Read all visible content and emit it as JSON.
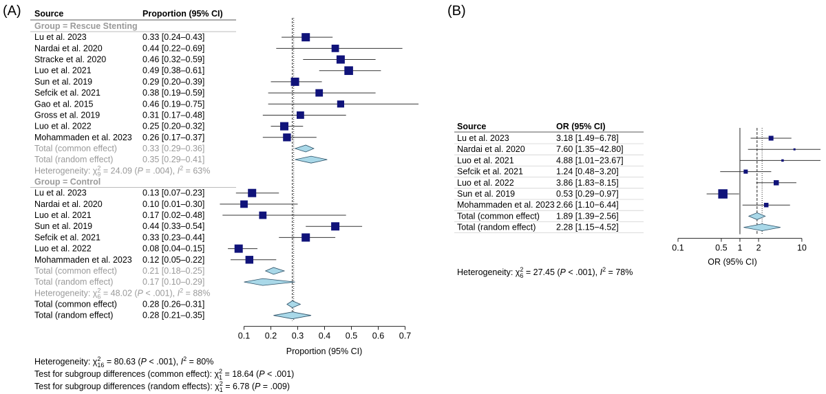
{
  "panel_a": {
    "label": "(A)",
    "header_source": "Source",
    "header_ci": "Proportion (95% CI)",
    "xlabel": "Proportion (95% CI)",
    "footer": {
      "line1": [
        "Heterogeneity: χ",
        "2",
        "16",
        " = 80.63 (",
        "P",
        " < .001), ",
        "I",
        "2",
        " = 80%"
      ],
      "line2": [
        "Test for subgroup differences (common effect): χ",
        "2",
        "1",
        " = 18.64 (",
        "P",
        " < .001)"
      ],
      "line3": [
        "Test for subgroup differences (random effects): χ",
        "2",
        "1",
        " = 6.78 (",
        "P",
        " = .009)"
      ]
    }
  },
  "panel_b": {
    "label": "(B)",
    "header_source": "Source",
    "header_ci": "OR (95% CI)",
    "xlabel": "OR (95% CI)",
    "heterogeneity": [
      "Heterogeneity: χ",
      "2",
      "6",
      " = 27.45 (",
      "P",
      " < .001), ",
      "I",
      "2",
      " = 78%"
    ]
  },
  "chart_data": [
    {
      "type": "forest",
      "xlim": [
        0.05,
        0.75
      ],
      "xticks": [
        0.1,
        0.2,
        0.3,
        0.4,
        0.5,
        0.6,
        0.7
      ],
      "common_line": 0.28,
      "rows": [
        {
          "kind": "group",
          "label": "Group = Rescue Stenting"
        },
        {
          "kind": "study",
          "label": "Lu et al. 2023",
          "ci_text": "0.33 [0.24–0.43]",
          "est": 0.33,
          "lo": 0.24,
          "hi": 0.43,
          "w": 1.0
        },
        {
          "kind": "study",
          "label": "Nardai et al. 2020",
          "ci_text": "0.44 [0.22–0.69]",
          "est": 0.44,
          "lo": 0.22,
          "hi": 0.69,
          "w": 0.9
        },
        {
          "kind": "study",
          "label": "Stracke et al. 2020",
          "ci_text": "0.46 [0.32–0.59]",
          "est": 0.46,
          "lo": 0.32,
          "hi": 0.59,
          "w": 1.0
        },
        {
          "kind": "study",
          "label": "Luo et al. 2021",
          "ci_text": "0.49 [0.38–0.61]",
          "est": 0.49,
          "lo": 0.38,
          "hi": 0.61,
          "w": 1.05
        },
        {
          "kind": "study",
          "label": "Sun et al. 2019",
          "ci_text": "0.29 [0.20–0.39]",
          "est": 0.29,
          "lo": 0.2,
          "hi": 0.39,
          "w": 1.0
        },
        {
          "kind": "study",
          "label": "Sefcik et al. 2021",
          "ci_text": "0.38 [0.19–0.59]",
          "est": 0.38,
          "lo": 0.19,
          "hi": 0.59,
          "w": 0.9
        },
        {
          "kind": "study",
          "label": "Gao et al. 2015",
          "ci_text": "0.46 [0.19–0.75]",
          "est": 0.46,
          "lo": 0.19,
          "hi": 0.75,
          "w": 0.85
        },
        {
          "kind": "study",
          "label": "Gross et al. 2019",
          "ci_text": "0.31 [0.17–0.48]",
          "est": 0.31,
          "lo": 0.17,
          "hi": 0.48,
          "w": 0.9
        },
        {
          "kind": "study",
          "label": "Luo et al. 2022",
          "ci_text": "0.25 [0.20–0.32]",
          "est": 0.25,
          "lo": 0.2,
          "hi": 0.32,
          "w": 1.0
        },
        {
          "kind": "study",
          "label": "Mohammaden et al. 2023",
          "ci_text": "0.26 [0.17–0.37]",
          "est": 0.26,
          "lo": 0.17,
          "hi": 0.37,
          "w": 0.95
        },
        {
          "kind": "sub_pooled",
          "label": "Total (common effect)",
          "ci_text": "0.33 [0.29–0.36]",
          "est": 0.33,
          "lo": 0.29,
          "hi": 0.36
        },
        {
          "kind": "sub_pooled",
          "label": "Total (random effect)",
          "ci_text": "0.35 [0.29–0.41]",
          "est": 0.35,
          "lo": 0.29,
          "hi": 0.41
        },
        {
          "kind": "het",
          "parts": [
            "Heterogeneity: χ",
            "2",
            "9",
            " = 24.09 (",
            "P",
            " = .004), ",
            "I",
            "2",
            " = 63%"
          ]
        },
        {
          "kind": "group",
          "label": "Group = Control"
        },
        {
          "kind": "study",
          "label": "Lu et al. 2023",
          "ci_text": "0.13 [0.07–0.23]",
          "est": 0.13,
          "lo": 0.07,
          "hi": 0.23,
          "w": 1.0
        },
        {
          "kind": "study",
          "label": "Nardai et al. 2020",
          "ci_text": "0.10 [0.01–0.30]",
          "est": 0.1,
          "lo": 0.01,
          "hi": 0.3,
          "w": 0.9
        },
        {
          "kind": "study",
          "label": "Luo et al. 2021",
          "ci_text": "0.17 [0.02–0.48]",
          "est": 0.17,
          "lo": 0.02,
          "hi": 0.48,
          "w": 0.9
        },
        {
          "kind": "study",
          "label": "Sun et al. 2019",
          "ci_text": "0.44 [0.33–0.54]",
          "est": 0.44,
          "lo": 0.33,
          "hi": 0.54,
          "w": 1.0
        },
        {
          "kind": "study",
          "label": "Sefcik et al. 2021",
          "ci_text": "0.33 [0.23–0.44]",
          "est": 0.33,
          "lo": 0.23,
          "hi": 0.44,
          "w": 1.0
        },
        {
          "kind": "study",
          "label": "Luo et al. 2022",
          "ci_text": "0.08 [0.04–0.15]",
          "est": 0.08,
          "lo": 0.04,
          "hi": 0.15,
          "w": 1.0
        },
        {
          "kind": "study",
          "label": "Mohammaden et al. 2023",
          "ci_text": "0.12 [0.05–0.22]",
          "est": 0.12,
          "lo": 0.05,
          "hi": 0.22,
          "w": 0.95
        },
        {
          "kind": "sub_pooled",
          "label": "Total (common effect)",
          "ci_text": "0.21 [0.18–0.25]",
          "est": 0.21,
          "lo": 0.18,
          "hi": 0.25
        },
        {
          "kind": "sub_pooled",
          "label": "Total (random effect)",
          "ci_text": "0.17 [0.10–0.29]",
          "est": 0.17,
          "lo": 0.1,
          "hi": 0.29
        },
        {
          "kind": "het",
          "parts": [
            "Heterogeneity: χ",
            "2",
            "6",
            " = 48.02 (",
            "P",
            " < .001), ",
            "I",
            "2",
            " = 88%"
          ]
        },
        {
          "kind": "pooled",
          "label": "Total (common effect)",
          "ci_text": "0.28 [0.26–0.31]",
          "est": 0.28,
          "lo": 0.26,
          "hi": 0.31
        },
        {
          "kind": "pooled",
          "label": "Total (random effect)",
          "ci_text": "0.28 [0.21–0.35]",
          "est": 0.28,
          "lo": 0.21,
          "hi": 0.35
        }
      ]
    },
    {
      "type": "forest",
      "scale": "log",
      "xlim": [
        0.1,
        20
      ],
      "xticks": [
        0.1,
        0.5,
        1,
        2,
        10
      ],
      "xtick_labels": [
        "0.1",
        "0.5",
        "1",
        "2",
        "10"
      ],
      "null_line": 1,
      "common_line": 1.89,
      "random_line": 2.28,
      "rows": [
        {
          "kind": "study",
          "label": "Lu et al. 2023",
          "ci_text": "3.18 [1.49−6.78]",
          "est": 3.18,
          "lo": 1.49,
          "hi": 6.78,
          "w": 0.7
        },
        {
          "kind": "study",
          "label": "Nardai et al. 2020",
          "ci_text": "7.60 [1.35−42.80]",
          "est": 7.6,
          "lo": 1.35,
          "hi": 42.8,
          "w": 0.3
        },
        {
          "kind": "study",
          "label": "Luo et al. 2021",
          "ci_text": "4.88 [1.01−23.67]",
          "est": 4.88,
          "lo": 1.01,
          "hi": 23.67,
          "w": 0.35
        },
        {
          "kind": "study",
          "label": "Sefcik et al. 2021",
          "ci_text": "1.24 [0.48−3.20]",
          "est": 1.24,
          "lo": 0.48,
          "hi": 3.2,
          "w": 0.6
        },
        {
          "kind": "study",
          "label": "Luo et al. 2022",
          "ci_text": "3.86 [1.83−8.15]",
          "est": 3.86,
          "lo": 1.83,
          "hi": 8.15,
          "w": 0.75
        },
        {
          "kind": "study",
          "label": "Sun et al. 2019",
          "ci_text": "0.53 [0.29−0.97]",
          "est": 0.53,
          "lo": 0.29,
          "hi": 0.97,
          "w": 1.35
        },
        {
          "kind": "study",
          "label": "Mohammaden et al. 2023",
          "ci_text": "2.66 [1.10−6.44]",
          "est": 2.66,
          "lo": 1.1,
          "hi": 6.44,
          "w": 0.65
        },
        {
          "kind": "pooled",
          "label": "Total (common effect)",
          "ci_text": "1.89 [1.39−2.56]",
          "est": 1.89,
          "lo": 1.39,
          "hi": 2.56
        },
        {
          "kind": "pooled",
          "label": "Total (random effect)",
          "ci_text": "2.28 [1.15−4.52]",
          "est": 2.28,
          "lo": 1.15,
          "hi": 4.52
        }
      ]
    }
  ],
  "colors": {
    "box": "#10137a",
    "diamond": "#a9d8e8",
    "diamond_stroke": "#2a4f66",
    "grey_text": "#9a9a9a",
    "line": "#333333"
  }
}
